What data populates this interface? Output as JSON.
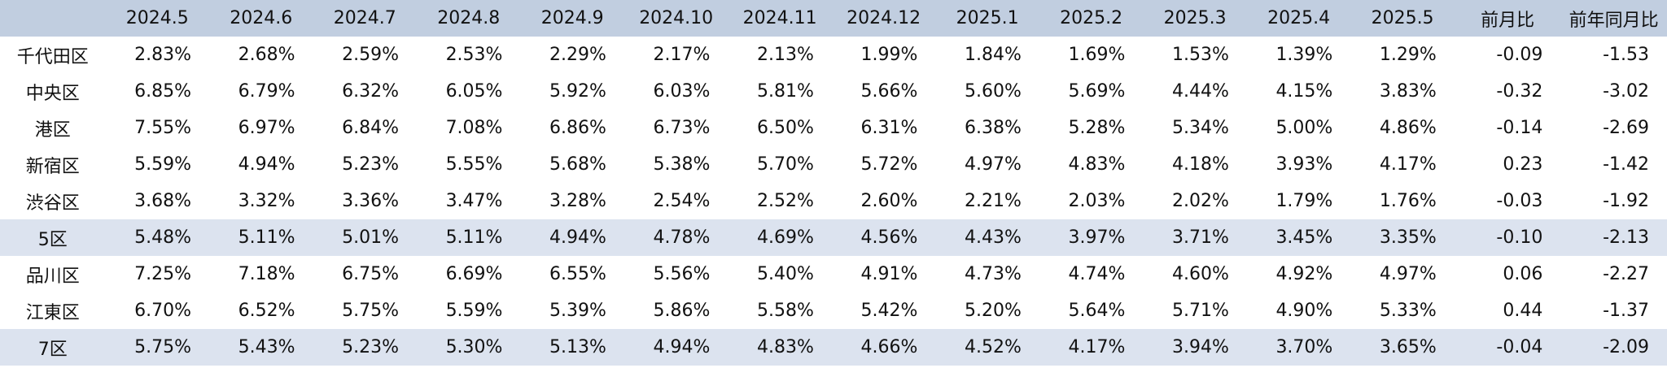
{
  "table": {
    "corner": "",
    "periods": [
      "2024.5",
      "2024.6",
      "2024.7",
      "2024.8",
      "2024.9",
      "2024.10",
      "2024.11",
      "2024.12",
      "2025.1",
      "2025.2",
      "2025.3",
      "2025.4",
      "2025.5"
    ],
    "change_headers": [
      "前月比",
      "前年同月比"
    ],
    "rows": [
      {
        "label": "千代田区",
        "summary": false,
        "values": [
          "2.83%",
          "2.68%",
          "2.59%",
          "2.53%",
          "2.29%",
          "2.17%",
          "2.13%",
          "1.99%",
          "1.84%",
          "1.69%",
          "1.53%",
          "1.39%",
          "1.29%"
        ],
        "mom": "-0.09",
        "yoy": "-1.53"
      },
      {
        "label": "中央区",
        "summary": false,
        "values": [
          "6.85%",
          "6.79%",
          "6.32%",
          "6.05%",
          "5.92%",
          "6.03%",
          "5.81%",
          "5.66%",
          "5.60%",
          "5.69%",
          "4.44%",
          "4.15%",
          "3.83%"
        ],
        "mom": "-0.32",
        "yoy": "-3.02"
      },
      {
        "label": "港区",
        "summary": false,
        "values": [
          "7.55%",
          "6.97%",
          "6.84%",
          "7.08%",
          "6.86%",
          "6.73%",
          "6.50%",
          "6.31%",
          "6.38%",
          "5.28%",
          "5.34%",
          "5.00%",
          "4.86%"
        ],
        "mom": "-0.14",
        "yoy": "-2.69"
      },
      {
        "label": "新宿区",
        "summary": false,
        "values": [
          "5.59%",
          "4.94%",
          "5.23%",
          "5.55%",
          "5.68%",
          "5.38%",
          "5.70%",
          "5.72%",
          "4.97%",
          "4.83%",
          "4.18%",
          "3.93%",
          "4.17%"
        ],
        "mom": "0.23",
        "yoy": "-1.42"
      },
      {
        "label": "渋谷区",
        "summary": false,
        "values": [
          "3.68%",
          "3.32%",
          "3.36%",
          "3.47%",
          "3.28%",
          "2.54%",
          "2.52%",
          "2.60%",
          "2.21%",
          "2.03%",
          "2.02%",
          "1.79%",
          "1.76%"
        ],
        "mom": "-0.03",
        "yoy": "-1.92"
      },
      {
        "label": "5区",
        "summary": true,
        "values": [
          "5.48%",
          "5.11%",
          "5.01%",
          "5.11%",
          "4.94%",
          "4.78%",
          "4.69%",
          "4.56%",
          "4.43%",
          "3.97%",
          "3.71%",
          "3.45%",
          "3.35%"
        ],
        "mom": "-0.10",
        "yoy": "-2.13"
      },
      {
        "label": "品川区",
        "summary": false,
        "values": [
          "7.25%",
          "7.18%",
          "6.75%",
          "6.69%",
          "6.55%",
          "5.56%",
          "5.40%",
          "4.91%",
          "4.73%",
          "4.74%",
          "4.60%",
          "4.92%",
          "4.97%"
        ],
        "mom": "0.06",
        "yoy": "-2.27"
      },
      {
        "label": "江東区",
        "summary": false,
        "values": [
          "6.70%",
          "6.52%",
          "5.75%",
          "5.59%",
          "5.39%",
          "5.86%",
          "5.58%",
          "5.42%",
          "5.20%",
          "5.64%",
          "5.71%",
          "4.90%",
          "5.33%"
        ],
        "mom": "0.44",
        "yoy": "-1.37"
      },
      {
        "label": "7区",
        "summary": true,
        "values": [
          "5.75%",
          "5.43%",
          "5.23%",
          "5.30%",
          "5.13%",
          "4.94%",
          "4.83%",
          "4.66%",
          "4.52%",
          "4.17%",
          "3.94%",
          "3.70%",
          "3.65%"
        ],
        "mom": "-0.04",
        "yoy": "-2.09"
      }
    ]
  },
  "colors": {
    "header_bg": "#c1cee0",
    "summary_row_bg": "#dce3ef",
    "row_bg": "#ffffff",
    "text": "#111111"
  }
}
